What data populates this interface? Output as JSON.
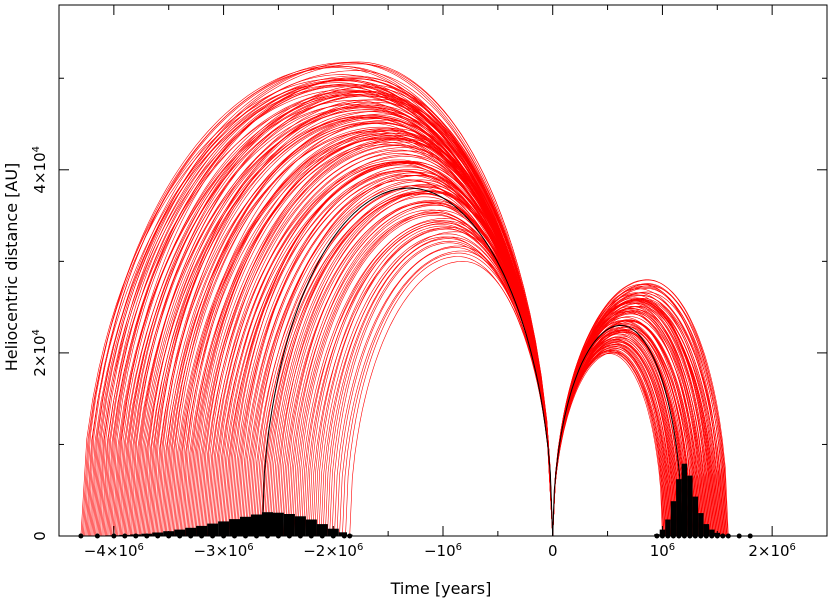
{
  "chart_data": {
    "type": "line",
    "title": "",
    "xlabel": "Time [years]",
    "ylabel": "Heliocentric distance [AU]",
    "xlim": [
      -4500000,
      2500000
    ],
    "ylim": [
      0,
      58000
    ],
    "x_ticks": [
      {
        "value": -4000000,
        "label": "−4×10",
        "exp": "6"
      },
      {
        "value": -3000000,
        "label": "−3×10",
        "exp": "6"
      },
      {
        "value": -2000000,
        "label": "−2×10",
        "exp": "6"
      },
      {
        "value": -1000000,
        "label": "−10",
        "exp": "6"
      },
      {
        "value": 0,
        "label": "0",
        "exp": ""
      },
      {
        "value": 1000000,
        "label": "10",
        "exp": "6"
      },
      {
        "value": 2000000,
        "label": "2×10",
        "exp": "6"
      }
    ],
    "y_ticks": [
      {
        "value": 0,
        "label": "0",
        "exp": ""
      },
      {
        "value": 20000,
        "label": "2×10",
        "exp": "4"
      },
      {
        "value": 40000,
        "label": "4×10",
        "exp": "4"
      }
    ],
    "x_minor_step": 500000,
    "y_minor_step": 10000,
    "colors": {
      "clones": "#ff0000",
      "nominal": "#000000",
      "histogram": "#000000"
    },
    "nominal_orbit": {
      "name": "nominal",
      "past_arc": {
        "start": -2650000,
        "peak_x": -1310000,
        "peak": 38000,
        "end": 0
      },
      "future_arc": {
        "start": 0,
        "peak_x": 620000,
        "peak": 23000,
        "end": 1180000
      }
    },
    "clone_envelope": {
      "past_arc": {
        "start_min": -4300000,
        "start_max": -1850000,
        "peak_min": 30000,
        "peak_max": 53000,
        "end": 0
      },
      "future_arc": {
        "start": 0,
        "end_min": 1000000,
        "end_max": 1600000,
        "peak_min": 19500,
        "peak_max": 28000
      }
    },
    "histograms": [
      {
        "name": "past-crossing-times",
        "x": [
          -4300000,
          -4150000,
          -4000000,
          -3900000,
          -3800000,
          -3700000,
          -3600000,
          -3500000,
          -3400000,
          -3300000,
          -3200000,
          -3100000,
          -3000000,
          -2900000,
          -2800000,
          -2700000,
          -2600000,
          -2500000,
          -2400000,
          -2300000,
          -2200000,
          -2100000,
          -2000000,
          -1900000,
          -1850000
        ],
        "values": [
          50,
          50,
          80,
          120,
          180,
          250,
          380,
          520,
          700,
          900,
          1100,
          1350,
          1600,
          1850,
          2100,
          2350,
          2600,
          2550,
          2400,
          2150,
          1800,
          1300,
          800,
          400,
          150
        ]
      },
      {
        "name": "future-crossing-times",
        "x": [
          950000,
          1000000,
          1050000,
          1100000,
          1150000,
          1200000,
          1250000,
          1300000,
          1350000,
          1400000,
          1450000,
          1500000,
          1550000,
          1600000,
          1700000,
          1800000
        ],
        "values": [
          200,
          700,
          1800,
          3800,
          6200,
          7900,
          6600,
          4300,
          2500,
          1300,
          700,
          350,
          150,
          60,
          30,
          20
        ]
      }
    ]
  }
}
